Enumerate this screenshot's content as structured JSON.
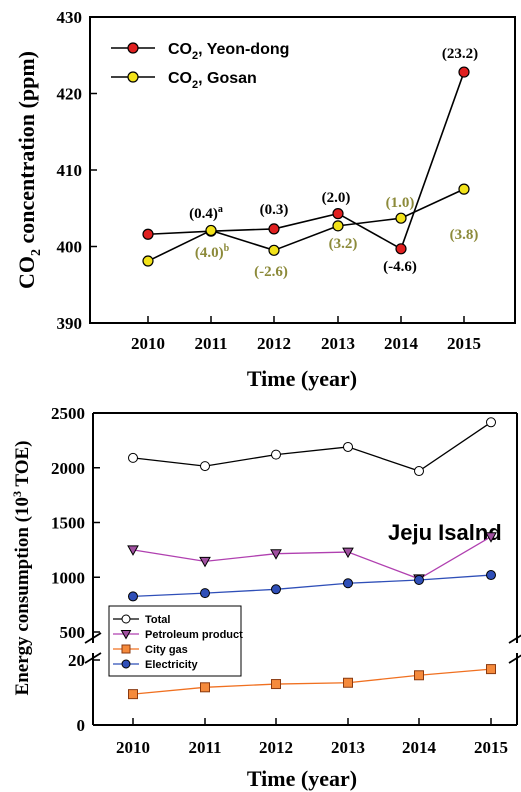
{
  "chart_data": [
    {
      "type": "line",
      "x": [
        "2010",
        "2011",
        "2012",
        "2013",
        "2014",
        "2015"
      ],
      "xlabel": "Time (year)",
      "ylabel_main": "CO",
      "ylabel_sub": "2",
      "ylabel_rest": " concentration (ppm)",
      "ylim": [
        390,
        430
      ],
      "yticks": [
        "390",
        "400",
        "410",
        "420",
        "430"
      ],
      "colors": {
        "yeon": "#e02020",
        "gosan": "#f2e21a",
        "olive": "#8c8a3a"
      },
      "series": [
        {
          "name_main": "CO",
          "name_sub": "2",
          "name_rest": ", Yeon-dong",
          "values": [
            401.6,
            402.0,
            402.3,
            404.3,
            399.7,
            422.8
          ]
        },
        {
          "name_main": "CO",
          "name_sub": "2",
          "name_rest": ", Gosan",
          "values": [
            398.1,
            402.1,
            399.5,
            402.7,
            403.7,
            407.5
          ]
        }
      ],
      "annotations_yeon": [
        {
          "i": 1,
          "text": "(0.4)",
          "sup": "a"
        },
        {
          "i": 2,
          "text": "(0.3)",
          "sup": ""
        },
        {
          "i": 3,
          "text": "(2.0)",
          "sup": ""
        },
        {
          "i": 4,
          "text": "(-4.6)",
          "sup": ""
        },
        {
          "i": 5,
          "text": "(23.2)",
          "sup": ""
        }
      ],
      "annotations_gosan": [
        {
          "i": 1,
          "text": "(4.0)",
          "sup": "b"
        },
        {
          "i": 2,
          "text": "(-2.6)",
          "sup": ""
        },
        {
          "i": 3,
          "text": "(3.2)",
          "sup": ""
        },
        {
          "i": 4,
          "text": "(1.0)",
          "sup": ""
        },
        {
          "i": 5,
          "text": "(3.8)",
          "sup": ""
        }
      ]
    },
    {
      "type": "line",
      "x": [
        "2010",
        "2011",
        "2012",
        "2013",
        "2014",
        "2015"
      ],
      "xlabel": "Time (year)",
      "ylabel_main": "Energy consumption (10",
      "ylabel_sup": "3",
      "ylabel_rest": " TOE)",
      "yticks_upper": [
        "500",
        "1000",
        "1500",
        "2000",
        "2500"
      ],
      "yticks_lower": [
        "0",
        "20"
      ],
      "annotation": "Jeju Isalnd",
      "series": [
        {
          "name": "Total",
          "values": [
            2090,
            2015,
            2120,
            2190,
            1970,
            2415
          ],
          "color": "#000000",
          "fill": "#ffffff",
          "marker": "circle"
        },
        {
          "name": "Petroleum product",
          "values": [
            1250,
            1145,
            1215,
            1230,
            985,
            1370
          ],
          "color": "#b040b0",
          "fill": "#a050a0",
          "marker": "triangle"
        },
        {
          "name": "City gas",
          "values": [
            9.5,
            11.6,
            12.6,
            13.0,
            15.3,
            17.2
          ],
          "color": "#f07020",
          "fill": "#f58a3c",
          "marker": "square"
        },
        {
          "name": "Electricity",
          "values": [
            825,
            855,
            890,
            945,
            975,
            1020
          ],
          "color": "#2f4fb8",
          "fill": "#2f4fb8",
          "marker": "circle"
        }
      ]
    }
  ]
}
